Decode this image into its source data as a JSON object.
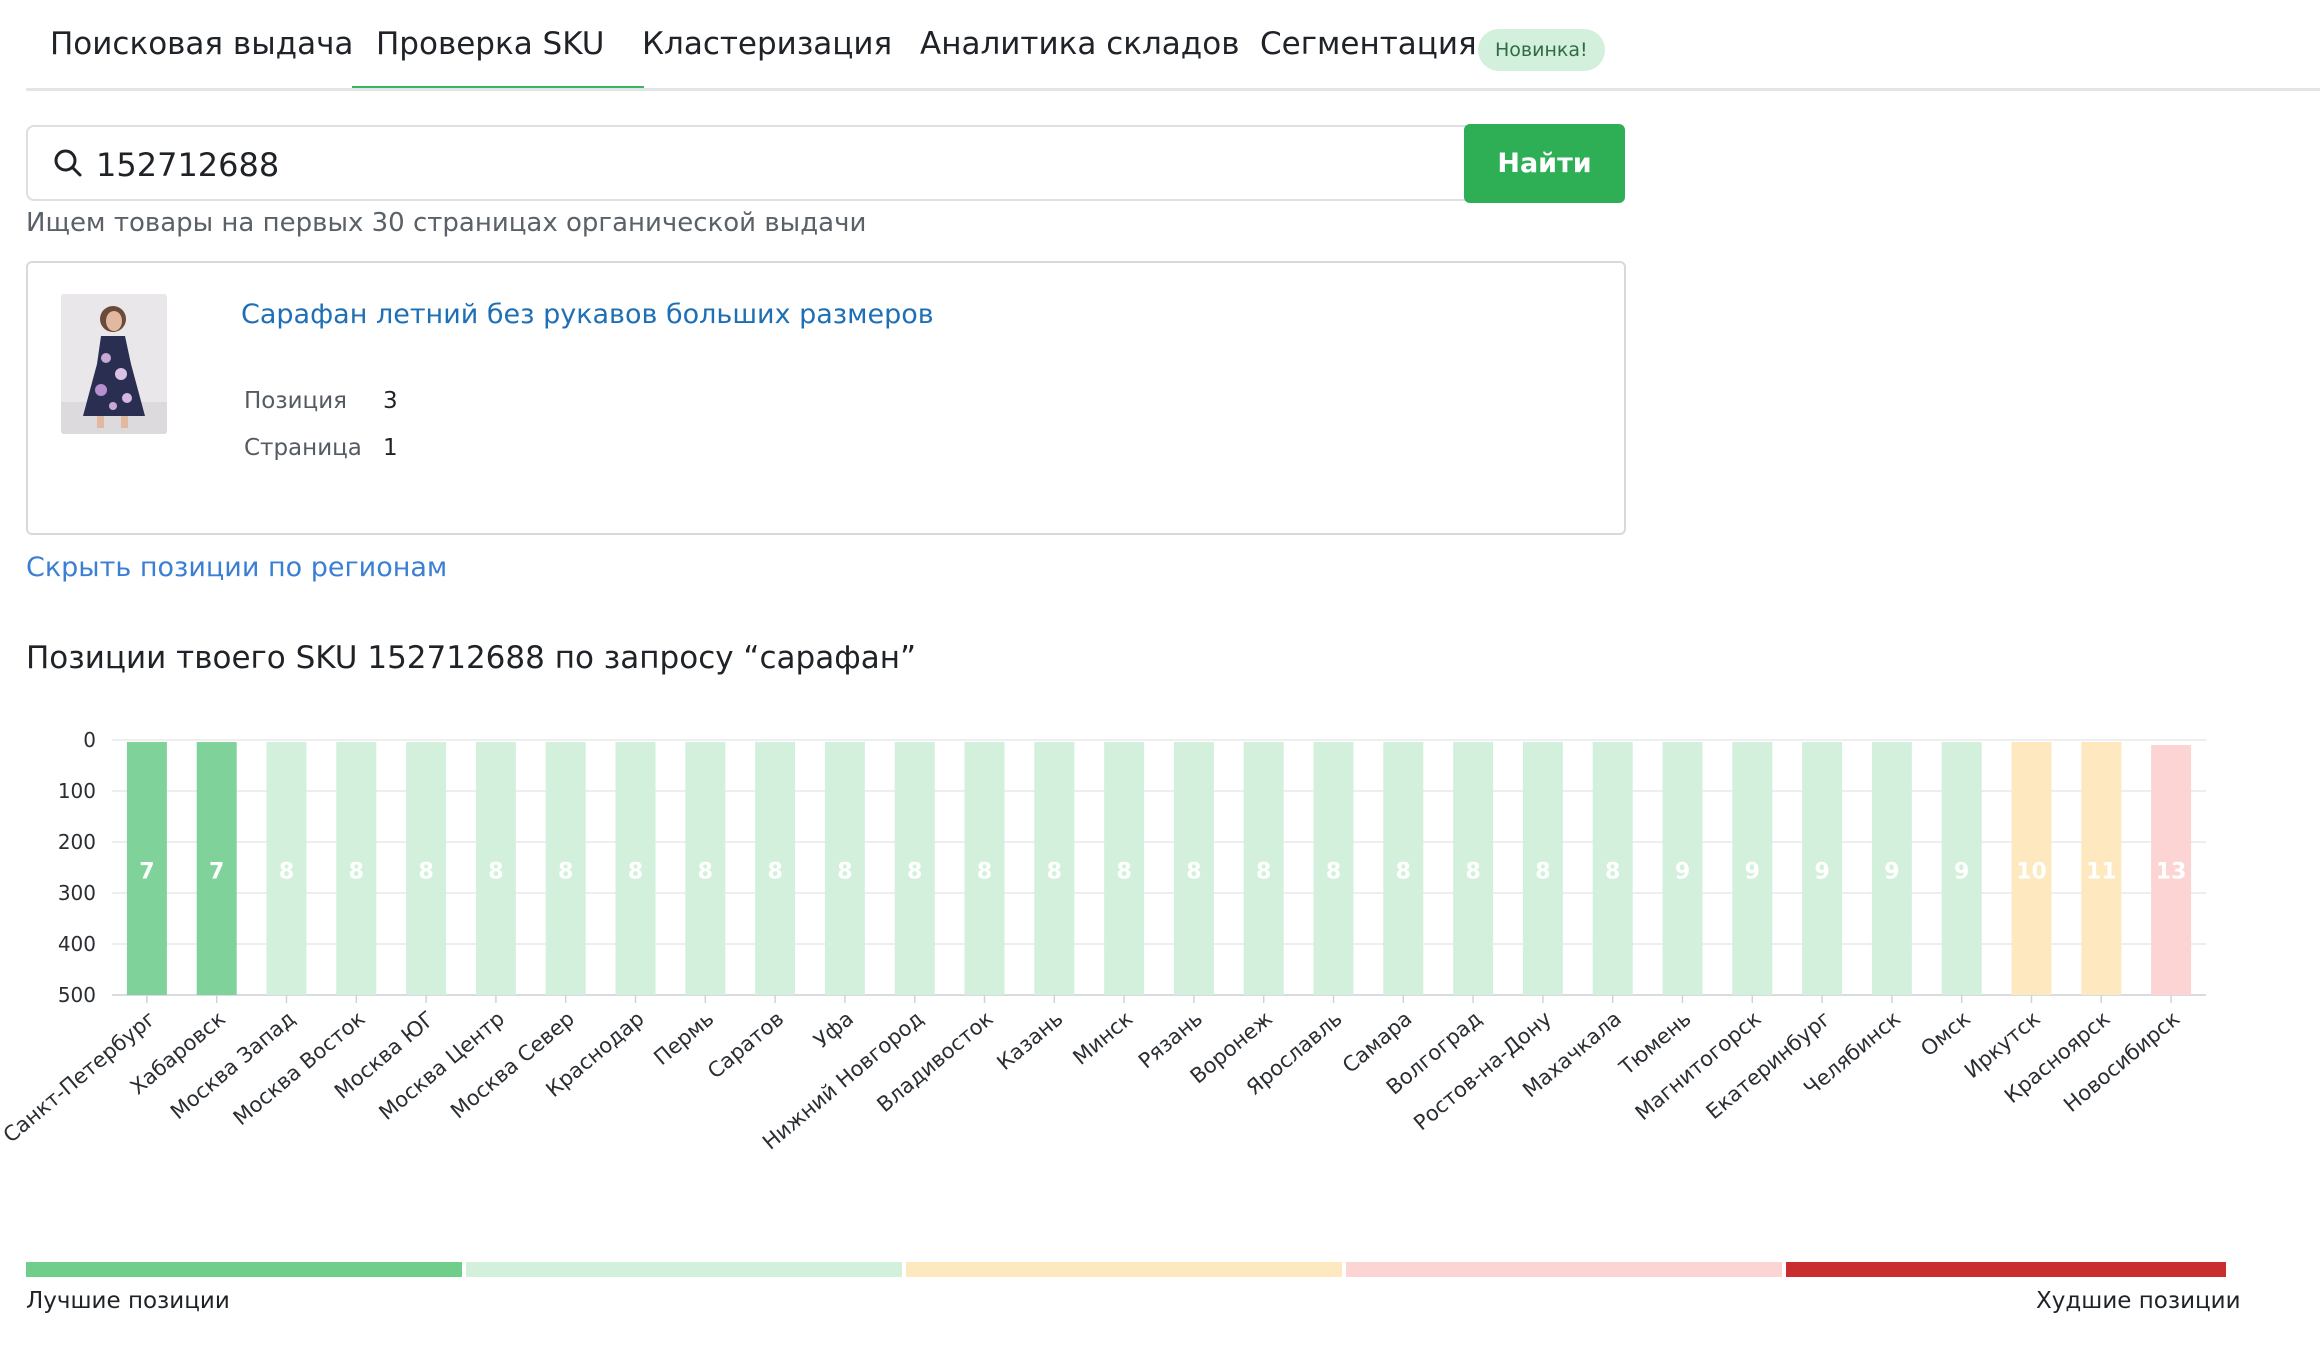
{
  "tabs": [
    {
      "label": "Поисковая выдача"
    },
    {
      "label": "Проверка SKU",
      "active": true
    },
    {
      "label": "Кластеризация"
    },
    {
      "label": "Аналитика складов"
    },
    {
      "label": "Сегментация"
    }
  ],
  "new_badge": "Новинка!",
  "search": {
    "value": "152712688",
    "button_label": "Найти",
    "hint": "Ищем товары на первых 30 страницах органической выдачи"
  },
  "product": {
    "title": "Сарафан летний без рукавов больших размеров",
    "position_label": "Позиция",
    "position_value": "3",
    "page_label": "Страница",
    "page_value": "1"
  },
  "toggle_link": "Скрыть позиции по регионам",
  "chart_heading": "Позиции твоего SKU 152712688 по запросу “сарафан”",
  "chart_data": {
    "type": "bar",
    "title": "Позиции твоего SKU 152712688 по запросу “сарафан”",
    "xlabel": "",
    "ylabel": "",
    "ylim": [
      0,
      500
    ],
    "y_inverted": true,
    "y_ticks": [
      0,
      100,
      200,
      300,
      400,
      500
    ],
    "grid": true,
    "categories": [
      "Санкт-Петербург",
      "Хабаровск",
      "Москва Запад",
      "Москва Восток",
      "Москва ЮГ",
      "Москва Центр",
      "Москва Север",
      "Краснодар",
      "Пермь",
      "Саратов",
      "Уфа",
      "Нижний Новгород",
      "Владивосток",
      "Казань",
      "Минск",
      "Рязань",
      "Воронеж",
      "Ярославль",
      "Самара",
      "Волгоград",
      "Ростов-на-Дону",
      "Махачкала",
      "Тюмень",
      "Магнитогорск",
      "Екатеринбург",
      "Челябинск",
      "Омск",
      "Иркутск",
      "Красноярск",
      "Новосибирск"
    ],
    "values": [
      7,
      7,
      8,
      8,
      8,
      8,
      8,
      8,
      8,
      8,
      8,
      8,
      8,
      8,
      8,
      8,
      8,
      8,
      8,
      8,
      8,
      8,
      9,
      9,
      9,
      9,
      9,
      10,
      11,
      13
    ],
    "bar_tiers": [
      "best",
      "best",
      "good",
      "good",
      "good",
      "good",
      "good",
      "good",
      "good",
      "good",
      "good",
      "good",
      "good",
      "good",
      "good",
      "good",
      "good",
      "good",
      "good",
      "good",
      "good",
      "good",
      "good",
      "good",
      "good",
      "good",
      "good",
      "medium",
      "medium",
      "poor"
    ],
    "tier_colors": {
      "best": "#7fd39a",
      "good": "#d3f0dc",
      "medium": "#fde8c0",
      "poor": "#fdd4d4",
      "worst": "#cc2f2f"
    }
  },
  "legend": {
    "best_label": "Лучшие позиции",
    "worst_label": "Худшие позиции",
    "segments": [
      "#6fcf8a",
      "#d3f0dc",
      "#fde8c0",
      "#fdd4d4",
      "#c92d2d"
    ]
  }
}
